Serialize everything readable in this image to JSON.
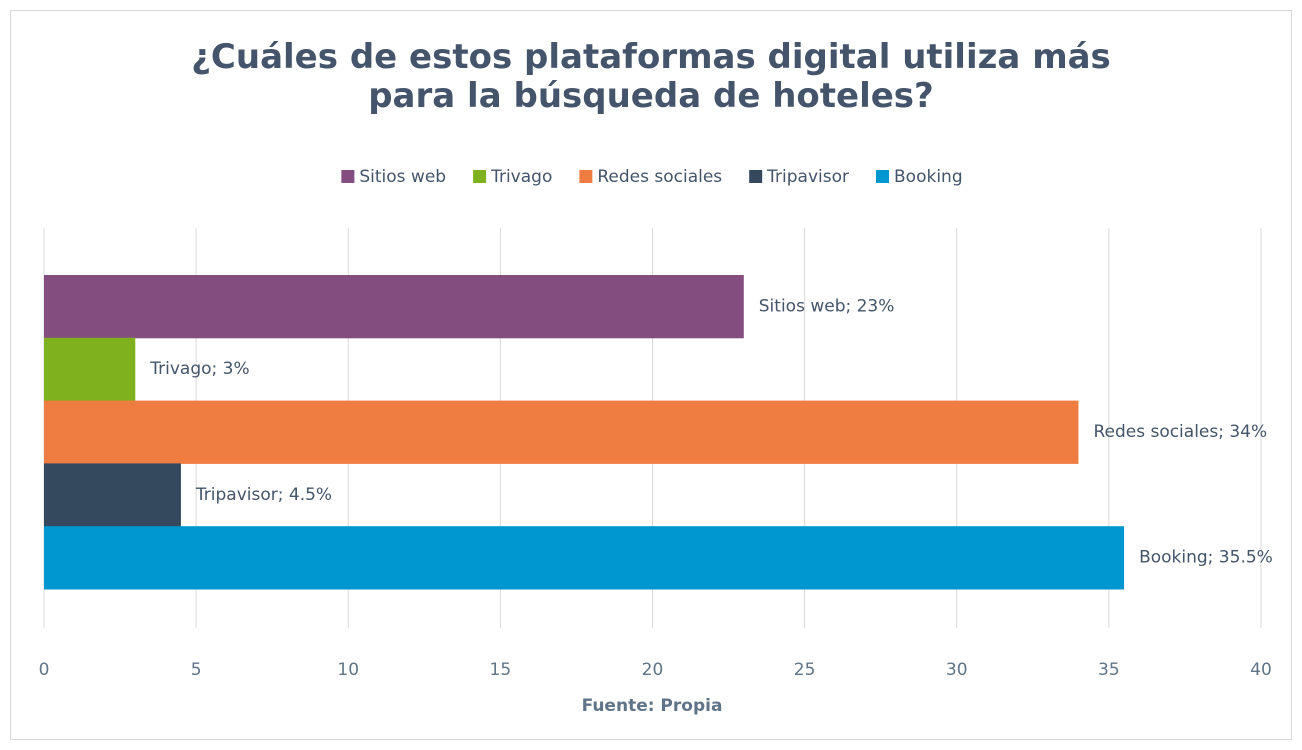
{
  "chart_data": {
    "type": "bar",
    "orientation": "horizontal",
    "title": "¿Cuáles de estos plataformas digital utiliza más para la búsqueda de hoteles?",
    "x_label": "Fuente: Propia",
    "legend": "top",
    "grid": true,
    "xlim": [
      0,
      40
    ],
    "xticks": [
      0,
      5,
      10,
      15,
      20,
      25,
      30,
      35,
      40
    ],
    "series": [
      {
        "name": "Sitios web",
        "color": "#834e7f",
        "values": [
          23
        ],
        "value_labels": [
          "Sitios web; 23%"
        ]
      },
      {
        "name": "Trivago",
        "color": "#7fb01d",
        "values": [
          3
        ],
        "value_labels": [
          "Trivago; 3%"
        ]
      },
      {
        "name": "Redes sociales",
        "color": "#ef7d42",
        "values": [
          34
        ],
        "value_labels": [
          "Redes sociales; 34%"
        ]
      },
      {
        "name": "Tripavisor",
        "color": "#34495e",
        "values": [
          4.5
        ],
        "value_labels": [
          "Tripavisor; 4.5%"
        ]
      },
      {
        "name": "Booking",
        "color": "#0096cf",
        "values": [
          35.5
        ],
        "value_labels": [
          "Booking; 35.5%"
        ]
      }
    ]
  }
}
